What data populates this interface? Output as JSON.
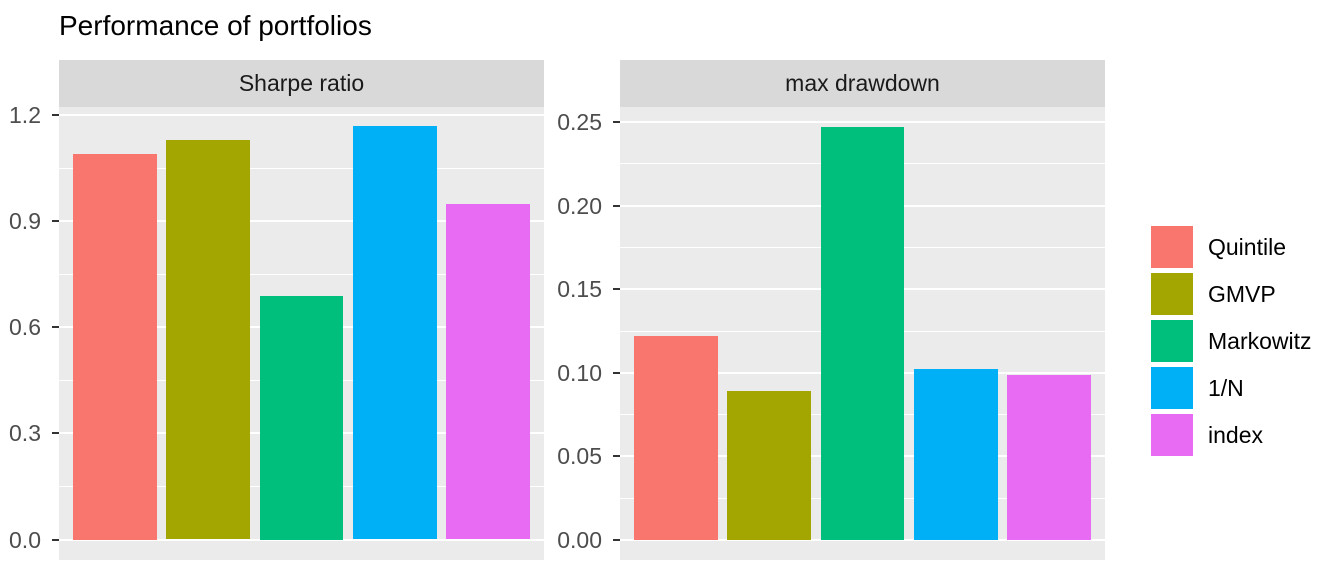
{
  "chart_data": {
    "type": "bar",
    "title": "Performance of portfolios",
    "categories": [
      "Quintile",
      "GMVP",
      "Markowitz",
      "1/N",
      "index"
    ],
    "facets": [
      {
        "label": "Sharpe ratio",
        "values": [
          1.09,
          1.13,
          0.69,
          1.17,
          0.95
        ],
        "yticks": [
          0,
          0.3,
          0.6,
          0.9,
          1.2
        ],
        "ytick_labels": [
          "0.0",
          "0.3",
          "0.6",
          "0.9",
          "1.2"
        ],
        "ylim": [
          -0.058,
          1.223
        ]
      },
      {
        "label": "max drawdown",
        "values": [
          0.122,
          0.089,
          0.247,
          0.102,
          0.099
        ],
        "yticks": [
          0,
          0.05,
          0.1,
          0.15,
          0.2,
          0.25
        ],
        "ytick_labels": [
          "0.00",
          "0.05",
          "0.10",
          "0.15",
          "0.20",
          "0.25"
        ],
        "ylim": [
          -0.012,
          0.259
        ]
      }
    ],
    "legend": {
      "position": "right",
      "entries": [
        {
          "label": "Quintile",
          "color": "#F8766D"
        },
        {
          "label": "GMVP",
          "color": "#A3A500"
        },
        {
          "label": "Markowitz",
          "color": "#00BF7D"
        },
        {
          "label": "1/N",
          "color": "#00B0F6"
        },
        {
          "label": "index",
          "color": "#E76BF3"
        }
      ]
    },
    "grid": true,
    "xlabel": "",
    "ylabel": ""
  },
  "theme": {
    "page_background": "#FFFFFF",
    "panel_background": "#EBEBEB",
    "strip_background": "#D9D9D9",
    "gridline_color": "#FFFFFF",
    "axis_text_color": "#4D4D4D",
    "tick_mark_color": "#333333",
    "strip_text_color": "#1A1A1A",
    "title_color": "#000000"
  }
}
